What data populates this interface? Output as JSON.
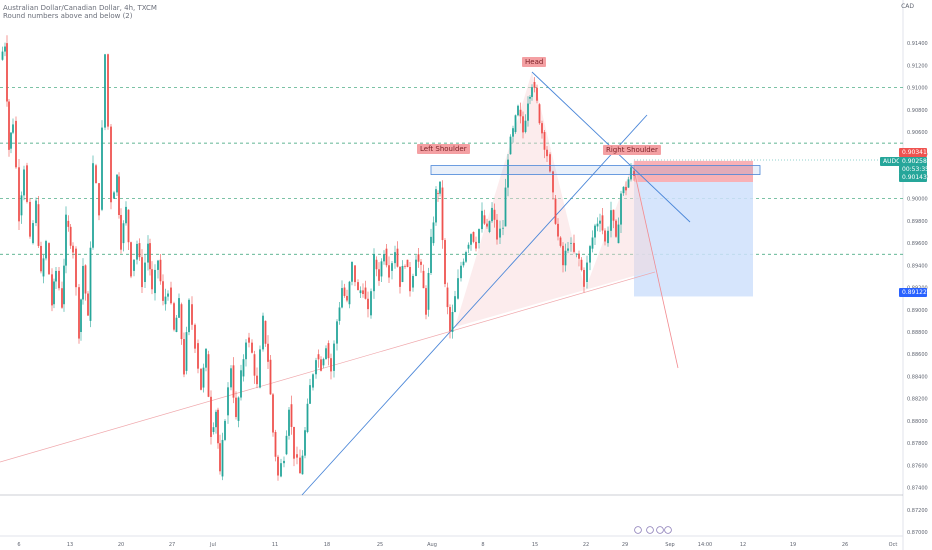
{
  "header": {
    "symbol_line": "Australian Dollar/Canadian Dollar, 4h, TXCM",
    "indicator_line": "Round numbers above and below (2)",
    "currency": "CAD"
  },
  "pattern_labels": {
    "left": "Left Shoulder",
    "head": "Head",
    "right": "Right Shoulder"
  },
  "price_boxes": {
    "sl_price": "0.90341",
    "ticker": "AUDCAD",
    "last_price": "0.90258",
    "countdown": "00:53:35",
    "entry_price": "0.90143",
    "target_price": "0.89122"
  },
  "colors": {
    "up": "#26a69a",
    "down": "#ef5350",
    "trend": "#4a86d8",
    "round_line": "#2e9e70",
    "sl_zone": "#f7a9ae",
    "tp_zone": "#cfe0fb"
  },
  "chart_data": {
    "type": "candlestick",
    "ylim": [
      0.87,
      0.915
    ],
    "y_ticks": [
      "0.91400",
      "0.91200",
      "0.91000",
      "0.90800",
      "0.90600",
      "0.90400",
      "0.90200",
      "0.90000",
      "0.89800",
      "0.89600",
      "0.89400",
      "0.89200",
      "0.89000",
      "0.88800",
      "0.88600",
      "0.88400",
      "0.88200",
      "0.88000",
      "0.87800",
      "0.87600",
      "0.87400",
      "0.87200",
      "0.87000"
    ],
    "x_ticks": [
      "6",
      "13",
      "20",
      "27",
      "Jul",
      "11",
      "18",
      "25",
      "Aug",
      "8",
      "15",
      "22",
      "29",
      "Sep",
      "14:00",
      "12",
      "19",
      "26",
      "Oct"
    ],
    "round_number_lines": [
      0.91,
      0.905,
      0.9,
      0.895
    ],
    "ohlc_path": [
      [
        0,
        0.9125
      ],
      [
        5,
        0.914
      ],
      [
        9,
        0.9045
      ],
      [
        13,
        0.907
      ],
      [
        19,
        0.8985
      ],
      [
        24,
        0.903
      ],
      [
        30,
        0.896
      ],
      [
        36,
        0.8995
      ],
      [
        41,
        0.893
      ],
      [
        46,
        0.896
      ],
      [
        52,
        0.8905
      ],
      [
        56,
        0.8935
      ],
      [
        62,
        0.8905
      ],
      [
        66,
        0.898
      ],
      [
        73,
        0.8955
      ],
      [
        79,
        0.888
      ],
      [
        83,
        0.894
      ],
      [
        88,
        0.889
      ],
      [
        93,
        0.903
      ],
      [
        99,
        0.899
      ],
      [
        105,
        0.913
      ],
      [
        111,
        0.9
      ],
      [
        117,
        0.902
      ],
      [
        121,
        0.896
      ],
      [
        126,
        0.899
      ],
      [
        131,
        0.8935
      ],
      [
        137,
        0.896
      ],
      [
        142,
        0.8925
      ],
      [
        148,
        0.896
      ],
      [
        152,
        0.8915
      ],
      [
        158,
        0.8945
      ],
      [
        163,
        0.8905
      ],
      [
        168,
        0.892
      ],
      [
        174,
        0.888
      ],
      [
        179,
        0.8905
      ],
      [
        184,
        0.8845
      ],
      [
        189,
        0.8905
      ],
      [
        195,
        0.887
      ],
      [
        201,
        0.883
      ],
      [
        206,
        0.886
      ],
      [
        211,
        0.879
      ],
      [
        216,
        0.881
      ],
      [
        220,
        0.875
      ],
      [
        225,
        0.8805
      ],
      [
        231,
        0.885
      ],
      [
        236,
        0.88
      ],
      [
        241,
        0.884
      ],
      [
        246,
        0.8875
      ],
      [
        252,
        0.886
      ],
      [
        257,
        0.883
      ],
      [
        263,
        0.889
      ],
      [
        268,
        0.8855
      ],
      [
        273,
        0.879
      ],
      [
        278,
        0.875
      ],
      [
        284,
        0.877
      ],
      [
        289,
        0.8815
      ],
      [
        294,
        0.877
      ],
      [
        300,
        0.8752
      ],
      [
        305,
        0.879
      ],
      [
        310,
        0.883
      ],
      [
        316,
        0.886
      ],
      [
        321,
        0.885
      ],
      [
        326,
        0.887
      ],
      [
        331,
        0.8845
      ],
      [
        337,
        0.889
      ],
      [
        342,
        0.892
      ],
      [
        347,
        0.8905
      ],
      [
        352,
        0.894
      ],
      [
        358,
        0.8915
      ],
      [
        363,
        0.892
      ],
      [
        368,
        0.8895
      ],
      [
        374,
        0.8945
      ],
      [
        379,
        0.893
      ],
      [
        384,
        0.8955
      ],
      [
        389,
        0.8935
      ],
      [
        395,
        0.8955
      ],
      [
        400,
        0.8925
      ],
      [
        405,
        0.8945
      ],
      [
        410,
        0.892
      ],
      [
        416,
        0.895
      ],
      [
        421,
        0.8935
      ],
      [
        426,
        0.89
      ],
      [
        431,
        0.896
      ],
      [
        436,
        0.9005
      ],
      [
        440,
        0.901
      ],
      [
        445,
        0.892
      ],
      [
        450,
        0.888
      ],
      [
        455,
        0.891
      ],
      [
        461,
        0.894
      ],
      [
        466,
        0.8955
      ],
      [
        471,
        0.897
      ],
      [
        476,
        0.896
      ],
      [
        482,
        0.8985
      ],
      [
        487,
        0.897
      ],
      [
        492,
        0.899
      ],
      [
        497,
        0.8965
      ],
      [
        503,
        0.8975
      ],
      [
        508,
        0.904
      ],
      [
        513,
        0.906
      ],
      [
        518,
        0.908
      ],
      [
        523,
        0.906
      ],
      [
        528,
        0.909
      ],
      [
        532,
        0.9105
      ],
      [
        537,
        0.9085
      ],
      [
        542,
        0.906
      ],
      [
        547,
        0.904
      ],
      [
        553,
        0.9
      ],
      [
        558,
        0.8965
      ],
      [
        563,
        0.894
      ],
      [
        568,
        0.896
      ],
      [
        574,
        0.895
      ],
      [
        579,
        0.8945
      ],
      [
        584,
        0.8925
      ],
      [
        590,
        0.8955
      ],
      [
        595,
        0.8975
      ],
      [
        600,
        0.8985
      ],
      [
        605,
        0.896
      ],
      [
        611,
        0.899
      ],
      [
        616,
        0.896
      ],
      [
        621,
        0.9005
      ],
      [
        626,
        0.901
      ],
      [
        631,
        0.9025
      ],
      [
        634,
        0.902
      ]
    ],
    "annotations": {
      "neckline_box": [
        0.9028,
        0.9022
      ],
      "sl_zone": [
        0.9034,
        0.9015
      ],
      "tp_zone": [
        0.9015,
        0.8912
      ]
    }
  }
}
